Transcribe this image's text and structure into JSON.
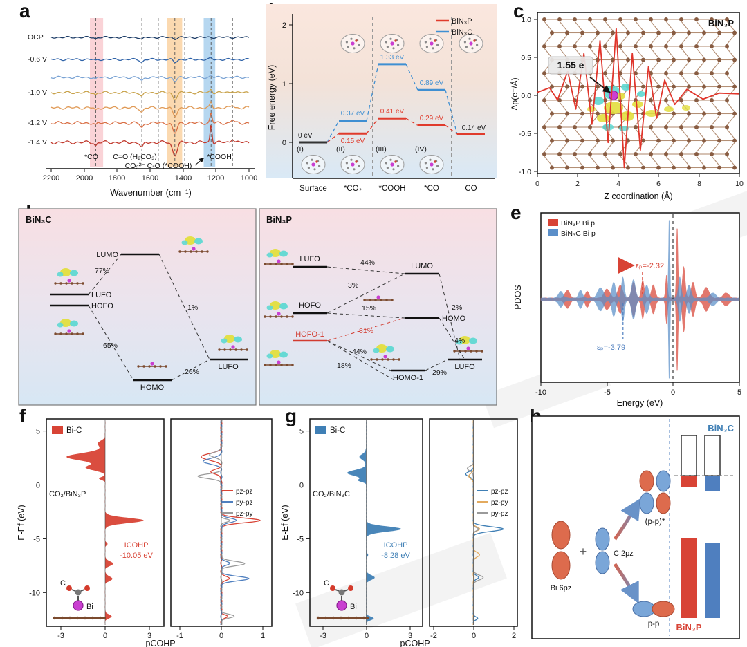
{
  "panels": {
    "a": {
      "label": "a",
      "x_label": "Wavenumber (cm⁻¹)",
      "x_ticks": [
        "2200",
        "2000",
        "1800",
        "1600",
        "1400",
        "1200",
        "1000"
      ],
      "curve_labels": [
        "OCP",
        "-0.6 V",
        "-1.0 V",
        "-1.2 V",
        "-1.4 V"
      ],
      "ann_co": "*CO",
      "ann_h2co3": "C=O (H₂CO₃)",
      "ann_co3": "CO₃²⁻ C-O (*COOH)",
      "ann_cooh": "*COOH"
    },
    "b": {
      "label": "b",
      "y_label": "Free energy (eV)",
      "y_ticks": [
        "2",
        "1",
        "0"
      ],
      "categories": [
        "Surface",
        "*CO₂",
        "*COOH",
        "*CO",
        "CO"
      ],
      "stages": [
        "(I)",
        "(II)",
        "(III)",
        "(IV)"
      ],
      "legend": [
        "BiN₃P",
        "BiN₃C"
      ],
      "value_labels": {
        "start": "0 eV",
        "end": "0.14 eV",
        "red": [
          "0.15 eV",
          "0.41 eV",
          "0.29 eV"
        ],
        "blue": [
          "0.37 eV",
          "1.33 eV",
          "0.89 eV"
        ]
      }
    },
    "c": {
      "label": "c",
      "title": "BiN₃P",
      "charge": "1.55 e",
      "y_label": "Δρ(e⁻/Å)",
      "y_ticks": [
        "1.0",
        "0.5",
        "0.0",
        "-0.5",
        "-1.0"
      ],
      "x_label": "Z coordination (Å)",
      "x_ticks": [
        "0",
        "2",
        "4",
        "6",
        "8",
        "10"
      ]
    },
    "d": {
      "label": "d",
      "left_title": "BiN₃C",
      "right_title": "BiN₃P",
      "left_levels": [
        "LUMO",
        "LUFO",
        "HOFO",
        "HOMO",
        "LUFO"
      ],
      "left_pcts": [
        "77%",
        "1%",
        "65%",
        "26%"
      ],
      "right_levels": [
        "LUFO",
        "LUMO",
        "HOFO",
        "HOMO",
        "HOFO-1",
        "HOMO-1",
        "LUFO"
      ],
      "right_pcts": [
        "44%",
        "3%",
        "15%",
        "81%",
        "2%",
        "4%",
        "44%",
        "18%",
        "29%"
      ]
    },
    "e": {
      "label": "e",
      "legend": [
        "BiN₃P Bi p",
        "BiN₃C Bi p"
      ],
      "y_label": "PDOS",
      "x_label": "Energy (eV)",
      "x_ticks": [
        "-10",
        "-5",
        "0",
        "5"
      ],
      "eps_red": "εₚ=-2.32",
      "eps_blue": "εₚ=-3.79"
    },
    "f": {
      "label": "f",
      "legend": "Bi-C",
      "system": "CO₂/BiN₃P",
      "icohp_1": "ICOHP",
      "icohp_2": "-10.05 eV",
      "y_label": "E-Ef (eV)",
      "y_ticks": [
        "5",
        "0",
        "-5",
        "-10"
      ],
      "x_label": "-pCOHP",
      "left_ticks": [
        "-3",
        "0",
        "3"
      ],
      "right_ticks": [
        "-1",
        "0",
        "1"
      ],
      "orb_legend": [
        "pz-pz",
        "py-pz",
        "pz-py"
      ],
      "atom_c": "C",
      "atom_bi": "Bi"
    },
    "g": {
      "label": "g",
      "legend": "Bi-C",
      "system": "CO₂/BiN₃C",
      "icohp_1": "ICOHP",
      "icohp_2": "-8.28 eV",
      "y_label": "E-Ef (eV)",
      "y_ticks": [
        "5",
        "0",
        "-5",
        "-10"
      ],
      "x_label": "-pCOHP",
      "left_ticks": [
        "-3",
        "0",
        "3"
      ],
      "right_ticks": [
        "-2",
        "0",
        "2"
      ],
      "orb_legend": [
        "pz-pz",
        "pz-py",
        "py-pz"
      ],
      "atom_c": "C",
      "atom_bi": "Bi"
    },
    "h": {
      "label": "h",
      "top_label": "BiN₃C",
      "bottom_label": "BiN₃P",
      "bi_orb": "Bi 6pz",
      "c_orb": "C 2pz",
      "plus": "+",
      "antibond": "(p-p)*",
      "bond": "p-p"
    }
  },
  "chart_data": [
    {
      "id": "a",
      "type": "line",
      "xlabel": "Wavenumber (cm⁻¹)",
      "x_range": [
        2200,
        1000
      ],
      "x_ticks": [
        2200,
        2000,
        1800,
        1600,
        1400,
        1200,
        1000
      ],
      "highlight_bands": [
        {
          "from": 1965,
          "to": 1885,
          "color": "rgba(242,130,140,0.35)"
        },
        {
          "from": 1495,
          "to": 1405,
          "color": "rgba(246,170,80,0.45)"
        },
        {
          "from": 1275,
          "to": 1205,
          "color": "rgba(110,175,225,0.5)"
        }
      ],
      "dashed_lines": [
        1930,
        1650,
        1550,
        1450,
        1390,
        1230,
        1100
      ],
      "series": [
        {
          "name": "OCP",
          "color": "#1b3b66",
          "baseline": 48,
          "noise": 0.9,
          "peaks": [
            {
              "c": 1930,
              "w": 10,
              "a": -2
            },
            {
              "c": 1650,
              "w": 14,
              "a": -3
            },
            {
              "c": 1450,
              "w": 16,
              "a": -2
            }
          ]
        },
        {
          "name": "-0.6 V",
          "color": "#2e62a8",
          "baseline": 80,
          "noise": 1.0,
          "peaks": [
            {
              "c": 1930,
              "w": 10,
              "a": -2
            },
            {
              "c": 1650,
              "w": 14,
              "a": -4
            },
            {
              "c": 1450,
              "w": 16,
              "a": -4
            },
            {
              "c": 1230,
              "w": 10,
              "a": 2
            }
          ]
        },
        {
          "name": "",
          "color": "#7aa3d4",
          "baseline": 106,
          "noise": 1.1,
          "peaks": [
            {
              "c": 1930,
              "w": 10,
              "a": -3
            },
            {
              "c": 1650,
              "w": 14,
              "a": -5
            },
            {
              "c": 1450,
              "w": 16,
              "a": -6
            },
            {
              "c": 1230,
              "w": 10,
              "a": 3
            }
          ]
        },
        {
          "name": "-1.0 V",
          "color": "#c8a24a",
          "baseline": 128,
          "noise": 1.2,
          "peaks": [
            {
              "c": 1930,
              "w": 10,
              "a": -3
            },
            {
              "c": 1650,
              "w": 14,
              "a": -6
            },
            {
              "c": 1450,
              "w": 18,
              "a": -9
            },
            {
              "c": 1230,
              "w": 10,
              "a": 5
            },
            {
              "c": 1100,
              "w": 12,
              "a": 3
            }
          ]
        },
        {
          "name": "",
          "color": "#e09a56",
          "baseline": 150,
          "noise": 1.3,
          "peaks": [
            {
              "c": 1930,
              "w": 10,
              "a": -4
            },
            {
              "c": 1650,
              "w": 14,
              "a": -6
            },
            {
              "c": 1450,
              "w": 18,
              "a": -12
            },
            {
              "c": 1230,
              "w": 9,
              "a": 8
            },
            {
              "c": 1100,
              "w": 12,
              "a": 4
            }
          ]
        },
        {
          "name": "-1.2 V",
          "color": "#d96f45",
          "baseline": 172,
          "noise": 1.4,
          "peaks": [
            {
              "c": 1930,
              "w": 10,
              "a": -4
            },
            {
              "c": 1650,
              "w": 14,
              "a": -7
            },
            {
              "c": 1450,
              "w": 18,
              "a": -15
            },
            {
              "c": 1230,
              "w": 9,
              "a": 14
            },
            {
              "c": 1100,
              "w": 12,
              "a": 5
            }
          ]
        },
        {
          "name": "-1.4 V",
          "color": "#c13a2e",
          "baseline": 200,
          "noise": 1.5,
          "peaks": [
            {
              "c": 1930,
              "w": 10,
              "a": -5
            },
            {
              "c": 1650,
              "w": 14,
              "a": -8
            },
            {
              "c": 1450,
              "w": 20,
              "a": -18
            },
            {
              "c": 1230,
              "w": 8,
              "a": 26
            },
            {
              "c": 1100,
              "w": 12,
              "a": 6
            }
          ]
        }
      ]
    },
    {
      "id": "b",
      "type": "step-line",
      "ylabel": "Free energy (eV)",
      "ylim": [
        0,
        2
      ],
      "categories": [
        "Surface",
        "*CO₂",
        "*COOH",
        "*CO",
        "CO"
      ],
      "series": [
        {
          "name": "BiN₃P",
          "color": "#e03b2c",
          "values": [
            0,
            0.15,
            0.41,
            0.29,
            0.14
          ]
        },
        {
          "name": "BiN₃C",
          "color": "#3f8fd2",
          "values": [
            0,
            0.37,
            1.33,
            0.89,
            0.14
          ]
        }
      ]
    },
    {
      "id": "c",
      "type": "line",
      "xlabel": "Z coordination (Å)",
      "ylabel": "Δρ(e⁻/Å)",
      "xlim": [
        0,
        10
      ],
      "ylim": [
        -1,
        1
      ],
      "annotation": "1.55 e",
      "series": [
        {
          "name": "Δρ",
          "color": "#e0352b",
          "points": [
            [
              0,
              0.04
            ],
            [
              0.6,
              0.1
            ],
            [
              1,
              -0.06
            ],
            [
              1.5,
              0.32
            ],
            [
              1.9,
              -0.18
            ],
            [
              2.3,
              0.55
            ],
            [
              2.7,
              -0.38
            ],
            [
              3.1,
              0.72
            ],
            [
              3.5,
              -0.62
            ],
            [
              3.9,
              0.88
            ],
            [
              4.3,
              -0.95
            ],
            [
              4.7,
              0.55
            ],
            [
              5.1,
              -0.72
            ],
            [
              5.5,
              0.38
            ],
            [
              5.9,
              -0.3
            ],
            [
              6.3,
              0.2
            ],
            [
              6.8,
              -0.12
            ],
            [
              7.4,
              0.08
            ],
            [
              8.2,
              -0.05
            ],
            [
              9,
              0.03
            ],
            [
              10,
              0.02
            ]
          ]
        }
      ]
    },
    {
      "id": "e",
      "type": "area",
      "xlabel": "Energy (eV)",
      "ylabel": "PDOS",
      "xlim": [
        -10,
        5
      ],
      "series": [
        {
          "name": "BiN₃P Bi p",
          "color": "#d84335",
          "peaks": [
            [
              -8,
              0.25,
              0.3
            ],
            [
              -6.5,
              0.2,
              0.25
            ],
            [
              -5,
              0.3,
              0.35
            ],
            [
              -4,
              0.25,
              0.5
            ],
            [
              -3,
              0.2,
              0.6
            ],
            [
              -2.3,
              0.15,
              0.7
            ],
            [
              -1.5,
              0.2,
              0.5
            ],
            [
              -0.5,
              0.1,
              0.9
            ],
            [
              0.3,
              0.08,
              2.8
            ],
            [
              0.8,
              0.15,
              1.2
            ],
            [
              1.5,
              0.2,
              0.6
            ],
            [
              2.5,
              0.3,
              0.4
            ],
            [
              4,
              0.3,
              0.2
            ]
          ]
        },
        {
          "name": "BiN₃C Bi p",
          "color": "#5b8fc9",
          "peaks": [
            [
              -8.5,
              0.25,
              0.25
            ],
            [
              -7,
              0.2,
              0.3
            ],
            [
              -5.5,
              0.3,
              0.4
            ],
            [
              -4.5,
              0.2,
              0.6
            ],
            [
              -3.8,
              0.15,
              0.8
            ],
            [
              -3,
              0.2,
              0.7
            ],
            [
              -2,
              0.2,
              0.5
            ],
            [
              -0.3,
              0.07,
              3.2
            ],
            [
              0.5,
              0.15,
              0.8
            ],
            [
              1.2,
              0.2,
              0.5
            ],
            [
              3,
              0.3,
              0.2
            ]
          ]
        }
      ],
      "band_centers": {
        "BiN3P": -2.32,
        "BiN3C": -3.79
      }
    },
    {
      "id": "f",
      "type": "cohp",
      "system": "CO₂/BiN₃P",
      "bond": "Bi-C",
      "icohp_eV": -10.05,
      "color": "#d84335",
      "left_profile": [
        [
          2.6,
          0.5,
          -2.6
        ],
        [
          1.6,
          0.35,
          -1.3
        ],
        [
          3.8,
          0.4,
          -0.5
        ],
        [
          0.6,
          0.2,
          -0.4
        ],
        [
          -3.3,
          0.35,
          2.6
        ],
        [
          -7.3,
          0.3,
          0.55
        ],
        [
          -8.7,
          0.3,
          0.5
        ],
        [
          -12.2,
          0.25,
          0.45
        ],
        [
          -5.5,
          0.2,
          0.15
        ]
      ],
      "orbital_series": [
        {
          "name": "pz-pz",
          "color": "#d84335",
          "bumps": [
            [
              -3.3,
              0.3,
              0.95
            ],
            [
              2.6,
              0.4,
              -0.5
            ],
            [
              1.2,
              0.3,
              -0.25
            ],
            [
              -8.7,
              0.25,
              0.2
            ],
            [
              -12.2,
              0.2,
              0.15
            ]
          ]
        },
        {
          "name": "py-pz",
          "color": "#4f7fbf",
          "bumps": [
            [
              -3.3,
              0.3,
              0.35
            ],
            [
              -8.7,
              0.3,
              0.65
            ],
            [
              2.2,
              0.35,
              -0.45
            ],
            [
              -7.3,
              0.25,
              0.2
            ]
          ]
        },
        {
          "name": "pz-py",
          "color": "#9a9a9a",
          "bumps": [
            [
              -7.3,
              0.3,
              0.55
            ],
            [
              0.8,
              0.3,
              -0.55
            ],
            [
              2.8,
              0.3,
              -0.3
            ],
            [
              -12.2,
              0.25,
              0.3
            ],
            [
              -3.3,
              0.2,
              0.2
            ]
          ]
        }
      ]
    },
    {
      "id": "g",
      "type": "cohp",
      "system": "CO₂/BiN₃C",
      "bond": "Bi-C",
      "icohp_eV": -8.28,
      "color": "#3f7fb5",
      "left_profile": [
        [
          1.1,
          0.4,
          -1.3
        ],
        [
          0.4,
          0.2,
          -0.5
        ],
        [
          2.6,
          0.4,
          -0.45
        ],
        [
          -4.1,
          0.35,
          2.4
        ],
        [
          -8.6,
          0.3,
          0.6
        ],
        [
          -12.4,
          0.25,
          0.5
        ],
        [
          -6.5,
          0.2,
          0.15
        ]
      ],
      "orbital_series": [
        {
          "name": "pz-pz",
          "color": "#3f7fb5",
          "bumps": [
            [
              -4.1,
              0.3,
              1.5
            ],
            [
              1.0,
              0.3,
              -0.4
            ],
            [
              -8.6,
              0.25,
              0.25
            ],
            [
              -12.4,
              0.2,
              0.2
            ]
          ]
        },
        {
          "name": "pz-py",
          "color": "#e3aa5e",
          "bumps": [
            [
              -4.1,
              0.25,
              0.3
            ],
            [
              -6.5,
              0.3,
              0.3
            ],
            [
              0.8,
              0.3,
              -0.25
            ]
          ]
        },
        {
          "name": "py-pz",
          "color": "#9a9a9a",
          "bumps": [
            [
              -8.6,
              0.3,
              0.5
            ],
            [
              -4.1,
              0.2,
              0.25
            ],
            [
              1.5,
              0.3,
              -0.3
            ]
          ]
        }
      ]
    }
  ]
}
